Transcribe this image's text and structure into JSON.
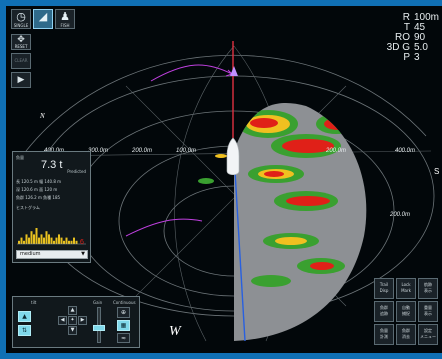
{
  "modes": [
    {
      "label": "SINGLE",
      "icon": "single-view-icon",
      "active": false
    },
    {
      "label": "",
      "icon": "sector-view-icon",
      "active": true
    },
    {
      "label": "FISH",
      "icon": "fish-view-icon",
      "active": false
    }
  ],
  "side": {
    "reset_label": "RESET",
    "clear_label": "CLEAR",
    "play_icon": "play-icon"
  },
  "readout": [
    {
      "key": "R",
      "value": "100m"
    },
    {
      "key": "T",
      "value": "45"
    },
    {
      "key": "RO",
      "value": "90"
    },
    {
      "key": "3D G",
      "value": "5.0"
    },
    {
      "key": "P",
      "value": "3"
    }
  ],
  "display": {
    "compass_west": "W",
    "compass_north": "N",
    "compass_south": "S",
    "range_left": [
      "400.0m",
      "300.0m",
      "200.0m",
      "100.0m"
    ],
    "range_right": [
      "200.0m",
      "400.0m"
    ],
    "range_right_low": "200.0m"
  },
  "info_panel": {
    "header": "魚量",
    "total": "7.3 t",
    "predicted_label": "Predicted",
    "rows": [
      "長   120.5 m   幅  140.8 m",
      "深   120.6 m   面  120 m",
      "魚群  126.2 m   魚種  185",
      "ヒストグラム"
    ],
    "mode_value": "medium",
    "histogram": [
      1,
      2,
      1,
      3,
      2,
      4,
      3,
      5,
      2,
      3,
      2,
      4,
      3,
      2,
      1,
      2,
      3,
      2,
      1,
      2,
      1,
      1,
      2,
      1
    ],
    "histogram_marker": "6"
  },
  "controls": {
    "left_label": "tilt",
    "right_label": "Gain",
    "far_label": "Continuous"
  },
  "grid_buttons": [
    {
      "l1": "Trail",
      "l2": "Disp"
    },
    {
      "l1": "Lock",
      "l2": "Mark"
    },
    {
      "l1": "航跡",
      "l2": "表示"
    },
    {
      "l1": "魚群",
      "l2": "追跡"
    },
    {
      "l1": "自動",
      "l2": "捕捉"
    },
    {
      "l1": "重量",
      "l2": "表示"
    },
    {
      "l1": "魚量",
      "l2": "計測"
    },
    {
      "l1": "魚群",
      "l2": "消去"
    },
    {
      "l1": "設定",
      "l2": "メニュー"
    }
  ],
  "colors": {
    "echo_strong": "#e02018",
    "echo_mid": "#f0c020",
    "echo_low": "#3aa030",
    "heading_line": "#e03040",
    "bearing_line": "#2860e0",
    "arc_magenta": "#c040e0"
  }
}
